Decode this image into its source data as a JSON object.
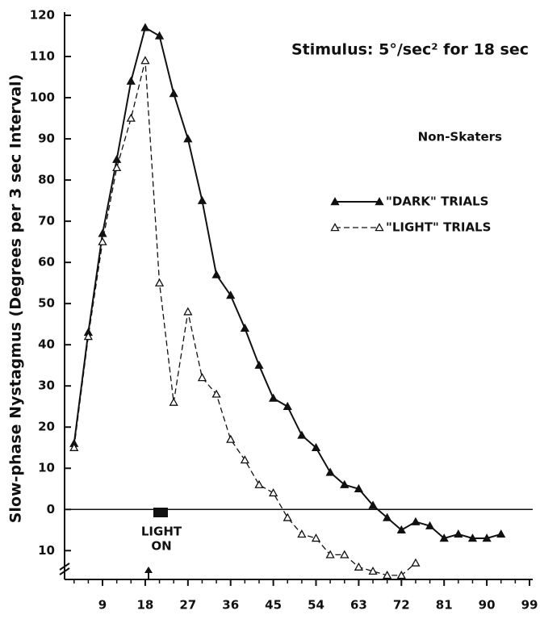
{
  "chart_data": {
    "type": "line",
    "title": "Stimulus:  5°/sec² for 18 sec",
    "subtitle": "Non-Skaters",
    "y_label": "Slow-phase Nystagmus (Degrees per 3 sec Interval)",
    "annotation": [
      "LIGHT",
      "ON"
    ],
    "x": [
      3,
      6,
      9,
      12,
      15,
      18,
      21,
      24,
      27,
      30,
      33,
      36,
      39,
      42,
      45,
      48,
      51,
      54,
      57,
      60,
      63,
      66,
      69,
      72,
      75,
      78,
      81,
      84,
      87,
      90,
      93
    ],
    "series": [
      {
        "name": "\"DARK\" TRIALS",
        "color": "#111111",
        "marker": "filled",
        "dash": false,
        "values": [
          16,
          43,
          67,
          85,
          104,
          117,
          115,
          101,
          90,
          75,
          57,
          52,
          44,
          35,
          27,
          25,
          18,
          15,
          9,
          6,
          5,
          1,
          -2,
          -5,
          -3,
          -4,
          -7,
          -6,
          -7,
          -7,
          -6
        ]
      },
      {
        "name": "\"LIGHT\" TRIALS",
        "color": "#111111",
        "marker": "open",
        "dash": true,
        "values": [
          15,
          42,
          65,
          83,
          95,
          109,
          55,
          26,
          48,
          32,
          28,
          17,
          12,
          6,
          4,
          -2,
          -6,
          -7,
          -11,
          -11,
          -14,
          -15,
          -16,
          -16,
          -13,
          null,
          null,
          null,
          null,
          null,
          null
        ]
      }
    ],
    "xlim": [
      1,
      99
    ],
    "xticks": [
      9,
      18,
      27,
      36,
      45,
      54,
      63,
      72,
      81,
      90,
      99
    ],
    "ylim": [
      -17,
      120
    ],
    "yticks": [
      {
        "value": -10,
        "label": "10"
      },
      0,
      10,
      20,
      30,
      40,
      50,
      60,
      70,
      80,
      90,
      100,
      110,
      120
    ]
  }
}
